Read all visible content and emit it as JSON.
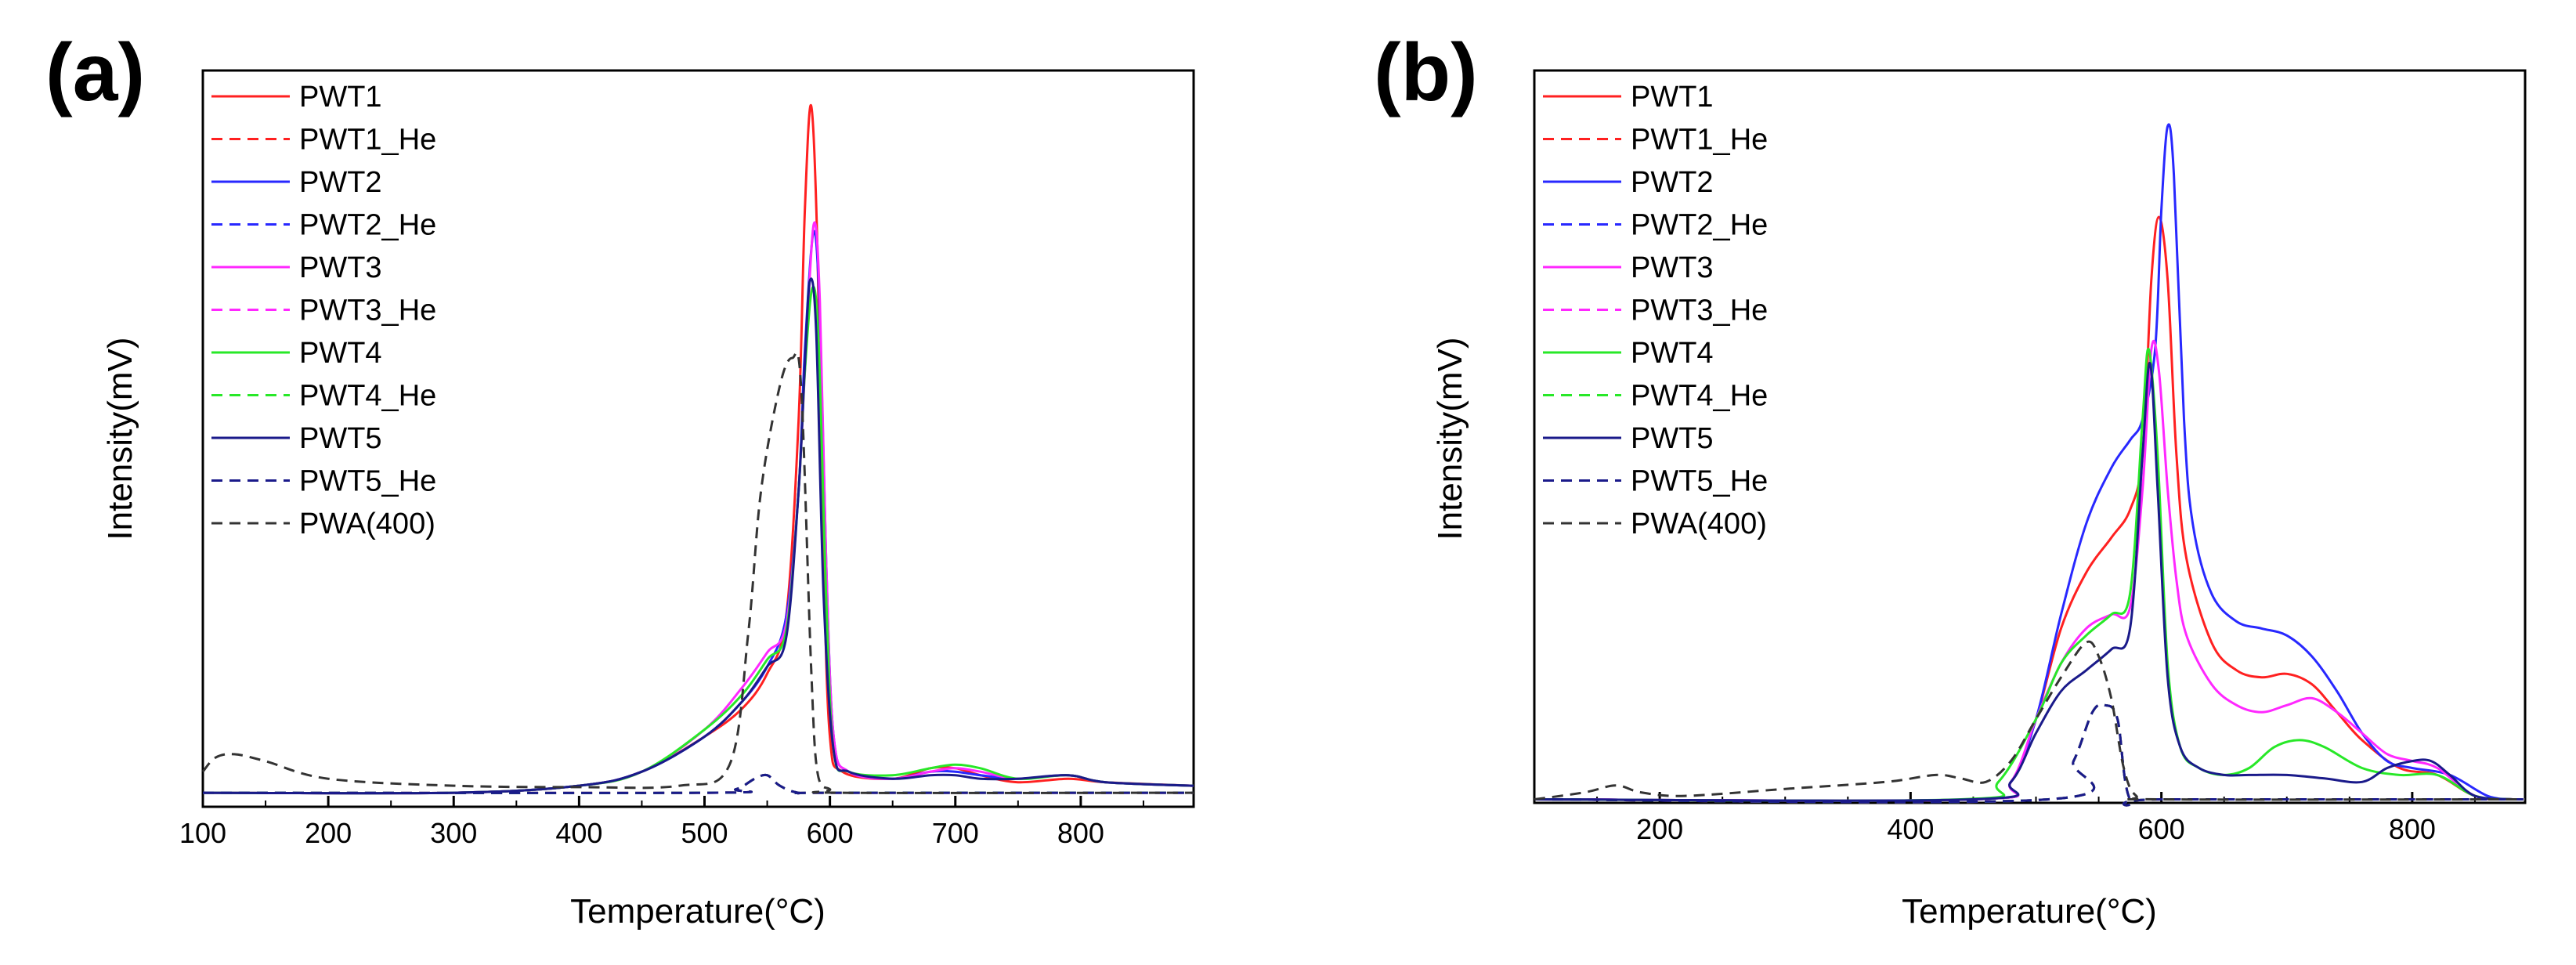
{
  "chart_data": [
    {
      "panel": "(a)",
      "type": "line",
      "xlabel": "Temperature(°C)",
      "ylabel": "Intensity(mV)",
      "xlim": [
        100,
        890
      ],
      "ylim": [
        0,
        1.05
      ],
      "xticks": [
        100,
        200,
        300,
        400,
        500,
        600,
        700,
        800
      ],
      "yticks": [],
      "legend_position": "top-left",
      "series": [
        {
          "name": "PWT1",
          "color": "#ff2020",
          "dash": "solid",
          "x": [
            100,
            300,
            400,
            450,
            500,
            530,
            550,
            565,
            575,
            580,
            585,
            590,
            595,
            600,
            610,
            650,
            680,
            700,
            720,
            750,
            790,
            820,
            890
          ],
          "y": [
            0.02,
            0.02,
            0.03,
            0.05,
            0.1,
            0.14,
            0.19,
            0.27,
            0.55,
            0.85,
            1.0,
            0.8,
            0.35,
            0.1,
            0.05,
            0.04,
            0.055,
            0.055,
            0.045,
            0.035,
            0.04,
            0.035,
            0.03
          ]
        },
        {
          "name": "PWT1_He",
          "color": "#ff2020",
          "dash": "dashed",
          "x": [
            100,
            500,
            525,
            540,
            550,
            560,
            575,
            600,
            890
          ],
          "y": [
            0.02,
            0.02,
            0.025,
            0.04,
            0.045,
            0.03,
            0.02,
            0.02,
            0.02
          ]
        },
        {
          "name": "PWT2",
          "color": "#2828ff",
          "dash": "solid",
          "x": [
            100,
            300,
            400,
            450,
            500,
            530,
            550,
            565,
            575,
            580,
            587,
            592,
            597,
            603,
            615,
            650,
            680,
            700,
            720,
            750,
            790,
            820,
            890
          ],
          "y": [
            0.02,
            0.02,
            0.03,
            0.05,
            0.1,
            0.15,
            0.2,
            0.27,
            0.45,
            0.65,
            0.82,
            0.7,
            0.35,
            0.1,
            0.05,
            0.04,
            0.05,
            0.05,
            0.045,
            0.04,
            0.045,
            0.035,
            0.03
          ]
        },
        {
          "name": "PWT2_He",
          "color": "#2828ff",
          "dash": "dashed",
          "x": [
            100,
            500,
            525,
            540,
            550,
            560,
            575,
            600,
            890
          ],
          "y": [
            0.02,
            0.02,
            0.025,
            0.04,
            0.045,
            0.03,
            0.02,
            0.02,
            0.02
          ]
        },
        {
          "name": "PWT3",
          "color": "#ff28ff",
          "dash": "solid",
          "x": [
            100,
            300,
            400,
            450,
            500,
            530,
            550,
            565,
            575,
            580,
            587,
            592,
            597,
            603,
            615,
            650,
            680,
            700,
            720,
            750,
            790,
            820,
            890
          ],
          "y": [
            0.02,
            0.02,
            0.03,
            0.05,
            0.11,
            0.17,
            0.22,
            0.26,
            0.45,
            0.62,
            0.83,
            0.72,
            0.35,
            0.1,
            0.05,
            0.04,
            0.05,
            0.055,
            0.05,
            0.04,
            0.045,
            0.035,
            0.03
          ]
        },
        {
          "name": "PWT3_He",
          "color": "#ff28ff",
          "dash": "dashed",
          "x": [
            100,
            500,
            525,
            540,
            550,
            560,
            575,
            600,
            890
          ],
          "y": [
            0.02,
            0.02,
            0.025,
            0.04,
            0.045,
            0.03,
            0.02,
            0.02,
            0.02
          ]
        },
        {
          "name": "PWT4",
          "color": "#28e828",
          "dash": "solid",
          "x": [
            100,
            300,
            400,
            450,
            500,
            530,
            550,
            565,
            575,
            580,
            586,
            591,
            597,
            603,
            615,
            650,
            680,
            700,
            720,
            750,
            790,
            820,
            890
          ],
          "y": [
            0.02,
            0.02,
            0.03,
            0.05,
            0.11,
            0.16,
            0.21,
            0.25,
            0.45,
            0.62,
            0.74,
            0.66,
            0.3,
            0.08,
            0.05,
            0.045,
            0.055,
            0.06,
            0.055,
            0.04,
            0.045,
            0.035,
            0.03
          ]
        },
        {
          "name": "PWT4_He",
          "color": "#28e828",
          "dash": "dashed",
          "x": [
            100,
            500,
            525,
            540,
            550,
            560,
            575,
            600,
            890
          ],
          "y": [
            0.02,
            0.02,
            0.025,
            0.04,
            0.045,
            0.03,
            0.02,
            0.02,
            0.02
          ]
        },
        {
          "name": "PWT5",
          "color": "#1a1a8a",
          "dash": "solid",
          "x": [
            100,
            300,
            400,
            450,
            500,
            530,
            550,
            565,
            575,
            580,
            584,
            589,
            595,
            603,
            615,
            650,
            680,
            700,
            720,
            750,
            790,
            820,
            890
          ],
          "y": [
            0.02,
            0.02,
            0.03,
            0.05,
            0.1,
            0.15,
            0.2,
            0.24,
            0.45,
            0.63,
            0.75,
            0.68,
            0.3,
            0.08,
            0.05,
            0.04,
            0.045,
            0.045,
            0.04,
            0.04,
            0.045,
            0.035,
            0.03
          ]
        },
        {
          "name": "PWT5_He",
          "color": "#1a1a8a",
          "dash": "dashed",
          "x": [
            100,
            500,
            525,
            540,
            550,
            560,
            575,
            600,
            890
          ],
          "y": [
            0.02,
            0.02,
            0.025,
            0.04,
            0.045,
            0.03,
            0.02,
            0.02,
            0.02
          ]
        },
        {
          "name": "PWA(400)",
          "color": "#333333",
          "dash": "dashed",
          "x": [
            100,
            110,
            125,
            150,
            200,
            300,
            400,
            480,
            520,
            535,
            545,
            560,
            570,
            577,
            585,
            590,
            600,
            610,
            890
          ],
          "y": [
            0.05,
            0.07,
            0.075,
            0.065,
            0.04,
            0.03,
            0.028,
            0.03,
            0.06,
            0.25,
            0.45,
            0.6,
            0.64,
            0.6,
            0.2,
            0.05,
            0.025,
            0.02,
            0.02
          ]
        }
      ]
    },
    {
      "panel": "(b)",
      "type": "line",
      "xlabel": "Temperature(°C)",
      "ylabel": "Intensity(mV)",
      "xlim": [
        100,
        890
      ],
      "ylim": [
        0,
        1.05
      ],
      "xticks": [
        200,
        400,
        600,
        800
      ],
      "yticks": [],
      "legend_position": "top-left",
      "series": [
        {
          "name": "PWT1",
          "color": "#ff2020",
          "dash": "solid",
          "x": [
            100,
            450,
            480,
            500,
            520,
            540,
            560,
            575,
            585,
            592,
            598,
            605,
            612,
            620,
            640,
            660,
            680,
            700,
            720,
            740,
            760,
            790,
            820,
            850,
            880
          ],
          "y": [
            0.005,
            0.005,
            0.03,
            0.12,
            0.25,
            0.33,
            0.38,
            0.42,
            0.5,
            0.75,
            0.84,
            0.75,
            0.5,
            0.35,
            0.23,
            0.19,
            0.18,
            0.185,
            0.17,
            0.13,
            0.09,
            0.05,
            0.04,
            0.01,
            0.005
          ]
        },
        {
          "name": "PWT1_He",
          "color": "#ff2020",
          "dash": "dashed",
          "x": [
            100,
            510,
            530,
            545,
            555,
            565,
            575,
            600,
            890
          ],
          "y": [
            0.005,
            0.005,
            0.06,
            0.13,
            0.14,
            0.12,
            0.005,
            0.005,
            0.005
          ]
        },
        {
          "name": "PWT2",
          "color": "#2828ff",
          "dash": "solid",
          "x": [
            100,
            450,
            480,
            500,
            520,
            540,
            560,
            575,
            585,
            595,
            600,
            605,
            610,
            618,
            625,
            640,
            660,
            680,
            700,
            720,
            740,
            760,
            780,
            800,
            830,
            860,
            880
          ],
          "y": [
            0.005,
            0.005,
            0.03,
            0.12,
            0.27,
            0.4,
            0.48,
            0.52,
            0.55,
            0.65,
            0.85,
            0.97,
            0.9,
            0.55,
            0.4,
            0.3,
            0.26,
            0.25,
            0.24,
            0.21,
            0.16,
            0.1,
            0.06,
            0.05,
            0.04,
            0.01,
            0.005
          ]
        },
        {
          "name": "PWT2_He",
          "color": "#2828ff",
          "dash": "dashed",
          "x": [
            100,
            510,
            530,
            545,
            555,
            565,
            575,
            600,
            890
          ],
          "y": [
            0.005,
            0.005,
            0.06,
            0.13,
            0.14,
            0.12,
            0.005,
            0.005,
            0.005
          ]
        },
        {
          "name": "PWT3",
          "color": "#ff28ff",
          "dash": "solid",
          "x": [
            100,
            450,
            480,
            500,
            520,
            540,
            560,
            575,
            585,
            592,
            598,
            605,
            612,
            620,
            640,
            660,
            680,
            700,
            720,
            740,
            760,
            780,
            800,
            820,
            850,
            880
          ],
          "y": [
            0.005,
            0.005,
            0.03,
            0.12,
            0.2,
            0.25,
            0.27,
            0.28,
            0.45,
            0.65,
            0.62,
            0.45,
            0.32,
            0.24,
            0.17,
            0.14,
            0.13,
            0.14,
            0.15,
            0.13,
            0.1,
            0.07,
            0.06,
            0.05,
            0.01,
            0.005
          ]
        },
        {
          "name": "PWT3_He",
          "color": "#ff28ff",
          "dash": "dashed",
          "x": [
            100,
            510,
            530,
            545,
            555,
            565,
            575,
            600,
            890
          ],
          "y": [
            0.005,
            0.005,
            0.06,
            0.13,
            0.14,
            0.12,
            0.005,
            0.005,
            0.005
          ]
        },
        {
          "name": "PWT4",
          "color": "#28e828",
          "dash": "solid",
          "x": [
            100,
            440,
            470,
            500,
            520,
            540,
            560,
            575,
            585,
            590,
            597,
            605,
            615,
            630,
            650,
            670,
            690,
            710,
            730,
            760,
            790,
            820,
            850,
            880
          ],
          "y": [
            0.005,
            0.005,
            0.03,
            0.12,
            0.2,
            0.24,
            0.27,
            0.3,
            0.55,
            0.65,
            0.5,
            0.2,
            0.08,
            0.05,
            0.04,
            0.05,
            0.08,
            0.09,
            0.08,
            0.05,
            0.04,
            0.04,
            0.01,
            0.005
          ]
        },
        {
          "name": "PWT4_He",
          "color": "#28e828",
          "dash": "dashed",
          "x": [
            100,
            510,
            530,
            545,
            555,
            565,
            575,
            600,
            890
          ],
          "y": [
            0.005,
            0.005,
            0.06,
            0.13,
            0.14,
            0.12,
            0.005,
            0.005,
            0.005
          ]
        },
        {
          "name": "PWT5",
          "color": "#1a1a8a",
          "dash": "solid",
          "x": [
            100,
            450,
            480,
            500,
            520,
            540,
            560,
            575,
            585,
            591,
            597,
            605,
            615,
            630,
            650,
            670,
            700,
            730,
            760,
            780,
            800,
            815,
            830,
            850,
            880
          ],
          "y": [
            0.005,
            0.005,
            0.03,
            0.1,
            0.16,
            0.19,
            0.22,
            0.25,
            0.5,
            0.63,
            0.45,
            0.18,
            0.08,
            0.05,
            0.04,
            0.04,
            0.04,
            0.035,
            0.03,
            0.05,
            0.06,
            0.06,
            0.04,
            0.01,
            0.005
          ]
        },
        {
          "name": "PWT5_He",
          "color": "#1a1a8a",
          "dash": "dashed",
          "x": [
            100,
            510,
            530,
            545,
            555,
            565,
            575,
            600,
            890
          ],
          "y": [
            0.005,
            0.005,
            0.06,
            0.13,
            0.14,
            0.12,
            0.005,
            0.005,
            0.005
          ]
        },
        {
          "name": "PWA(400)",
          "color": "#333333",
          "dash": "dashed",
          "x": [
            100,
            140,
            165,
            185,
            220,
            300,
            380,
            420,
            440,
            460,
            480,
            500,
            520,
            540,
            550,
            560,
            570,
            580,
            600,
            890
          ],
          "y": [
            0.005,
            0.015,
            0.025,
            0.015,
            0.01,
            0.02,
            0.03,
            0.04,
            0.035,
            0.03,
            0.06,
            0.12,
            0.18,
            0.23,
            0.21,
            0.15,
            0.05,
            0.01,
            0.005,
            0.005
          ]
        }
      ]
    }
  ]
}
